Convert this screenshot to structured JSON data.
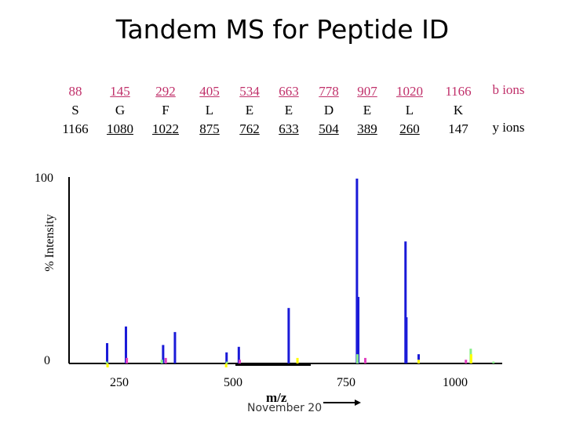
{
  "title": "Tandem MS for Peptide ID",
  "ion_table": {
    "b_ions": [
      "88",
      "145",
      "292",
      "405",
      "534",
      "663",
      "778",
      "907",
      "1020",
      "1166"
    ],
    "residues": [
      "S",
      "G",
      "F",
      "L",
      "E",
      "E",
      "D",
      "E",
      "L",
      "K"
    ],
    "y_ions": [
      "1166",
      "1080",
      "1022",
      "875",
      "762",
      "633",
      "504",
      "389",
      "260",
      "147"
    ],
    "b_label": "b ions",
    "y_label": "y ions"
  },
  "footer": {
    "date": "November 20"
  },
  "chart_data": {
    "type": "bar",
    "title": "",
    "xlabel": "m/z",
    "ylabel": "% Intensity",
    "xlim": [
      130,
      1120
    ],
    "ylim": [
      0,
      100
    ],
    "x_ticks": [
      "250",
      "500",
      "750",
      "1000"
    ],
    "y_ticks": [
      "0",
      "100"
    ],
    "grid": false,
    "legend": "none",
    "series": [
      {
        "color": "#1a1ad8",
        "x": [
          217,
          260,
          345,
          372,
          490,
          518,
          632,
          788,
          791,
          899,
          901,
          929
        ],
        "y": [
          11,
          20,
          10,
          17,
          6,
          9,
          30,
          100,
          36,
          66,
          25,
          5
        ]
      },
      {
        "color": "#e040c0",
        "x": [
          262,
          351,
          520,
          807,
          1037
        ],
        "y": [
          3,
          3,
          2,
          3,
          2
        ]
      },
      {
        "color": "#88ee88",
        "x": [
          216,
          342,
          491,
          789,
          1048,
          1100
        ],
        "y": [
          1,
          2,
          1,
          5,
          8,
          1
        ]
      },
      {
        "color": "#ffff00",
        "x": [
          218,
          489,
          652,
          929,
          1049
        ],
        "y": [
          -1,
          -1,
          3,
          2,
          5
        ]
      }
    ]
  }
}
